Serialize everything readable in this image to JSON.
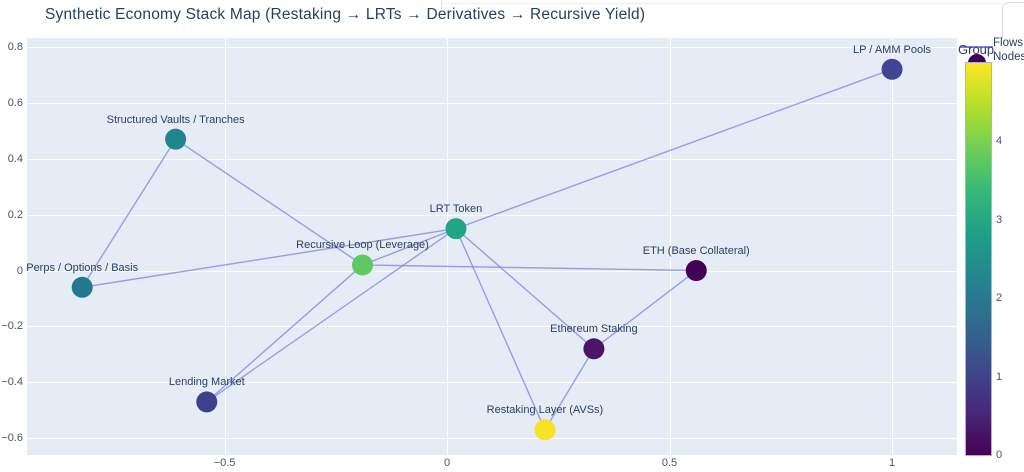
{
  "title": "Synthetic Economy Stack Map (Restaking → LRTs → Derivatives → Recursive Yield)",
  "legend": {
    "items": [
      {
        "label": "Flows",
        "type": "line"
      },
      {
        "label": "Nodes",
        "type": "marker",
        "marker_color": "#440154"
      }
    ]
  },
  "colorbar": {
    "title": "Group",
    "min": 0,
    "max": 5,
    "ticks": [
      {
        "v": 0,
        "label": "0"
      },
      {
        "v": 1,
        "label": "1"
      },
      {
        "v": 2,
        "label": "2"
      },
      {
        "v": 3,
        "label": "3"
      },
      {
        "v": 4,
        "label": "4"
      }
    ],
    "gradient": [
      "#440154",
      "#482878",
      "#3e4989",
      "#31688e",
      "#26828e",
      "#1f9e89",
      "#35b779",
      "#6ece58",
      "#b5de2b",
      "#fde725"
    ]
  },
  "chart_data": {
    "type": "scatter",
    "subtype": "network-graph",
    "title": "Synthetic Economy Stack Map (Restaking → LRTs → Derivatives → Recursive Yield)",
    "plot_bg": "#e5ecf6",
    "grid": true,
    "edge_color": "#7d82e0",
    "edge_width": 1.4,
    "edge_opacity": 0.75,
    "node_radius": 10.5,
    "xaxis": {
      "range": [
        -0.944,
        1.146
      ],
      "ticks": [
        {
          "v": -0.5,
          "label": "−0.5"
        },
        {
          "v": 0,
          "label": "0"
        },
        {
          "v": 0.5,
          "label": "0.5"
        },
        {
          "v": 1,
          "label": "1"
        }
      ]
    },
    "yaxis": {
      "range": [
        -0.66,
        0.832
      ],
      "ticks": [
        {
          "v": 0.8,
          "label": "0.8"
        },
        {
          "v": 0.6,
          "label": "0.6"
        },
        {
          "v": 0.4,
          "label": "0.4"
        },
        {
          "v": 0.2,
          "label": "0.2"
        },
        {
          "v": 0,
          "label": "0"
        },
        {
          "v": -0.2,
          "label": "−0.2"
        },
        {
          "v": -0.4,
          "label": "−0.4"
        },
        {
          "v": -0.6,
          "label": "−0.6"
        }
      ]
    },
    "nodes": [
      {
        "label": "ETH (Base Collateral)",
        "x": 0.56,
        "y": 0.0,
        "color": "#440154"
      },
      {
        "label": "Ethereum Staking",
        "x": 0.33,
        "y": -0.28,
        "color": "#4a1566"
      },
      {
        "label": "Restaking Layer (AVSs)",
        "x": 0.22,
        "y": -0.57,
        "color": "#f8e225"
      },
      {
        "label": "LRT Token",
        "x": 0.02,
        "y": 0.15,
        "color": "#21a585"
      },
      {
        "label": "Recursive Loop (Leverage)",
        "x": -0.19,
        "y": 0.02,
        "color": "#5ec962"
      },
      {
        "label": "Lending Market",
        "x": -0.54,
        "y": -0.47,
        "color": "#3e4189"
      },
      {
        "label": "Perps / Options / Basis",
        "x": -0.82,
        "y": -0.06,
        "color": "#22798e"
      },
      {
        "label": "Structured Vaults / Tranches",
        "x": -0.61,
        "y": 0.47,
        "color": "#21858d"
      },
      {
        "label": "LP / AMM Pools",
        "x": 1.0,
        "y": 0.72,
        "color": "#3f4592"
      }
    ],
    "edges": [
      [
        "ETH (Base Collateral)",
        "Ethereum Staking"
      ],
      [
        "Ethereum Staking",
        "Restaking Layer (AVSs)"
      ],
      [
        "Restaking Layer (AVSs)",
        "LRT Token"
      ],
      [
        "LRT Token",
        "LP / AMM Pools"
      ],
      [
        "LRT Token",
        "Lending Market"
      ],
      [
        "LRT Token",
        "Ethereum Staking"
      ],
      [
        "LRT Token",
        "Perps / Options / Basis"
      ],
      [
        "LRT Token",
        "Recursive Loop (Leverage)"
      ],
      [
        "Recursive Loop (Leverage)",
        "Lending Market"
      ],
      [
        "Recursive Loop (Leverage)",
        "ETH (Base Collateral)"
      ],
      [
        "Recursive Loop (Leverage)",
        "Structured Vaults / Tranches"
      ],
      [
        "Structured Vaults / Tranches",
        "Perps / Options / Basis"
      ]
    ]
  }
}
